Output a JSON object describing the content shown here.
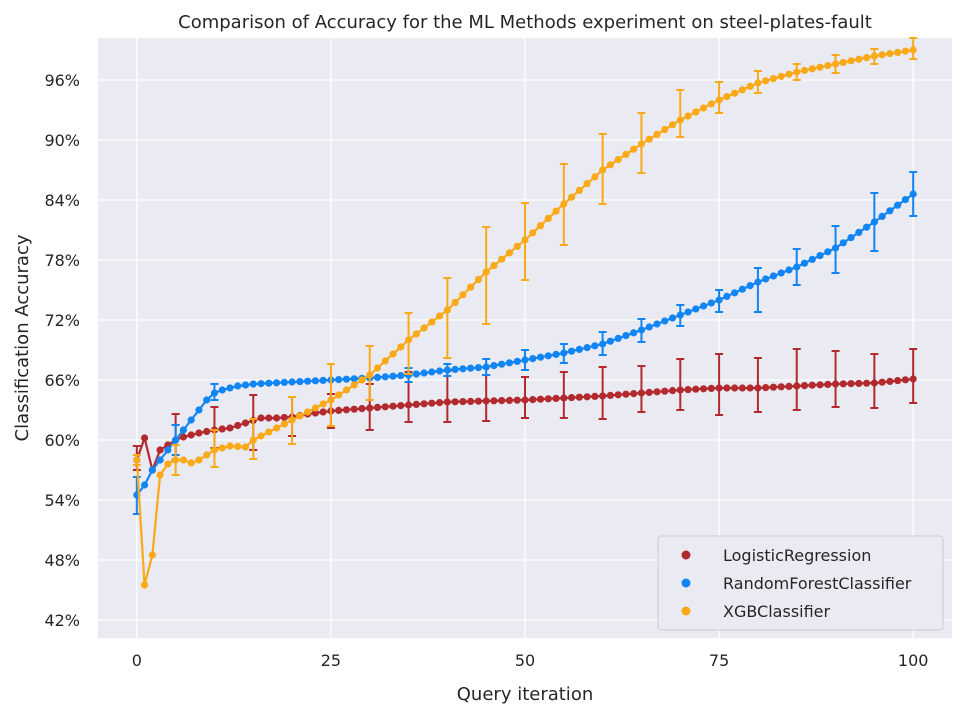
{
  "chart_data": {
    "type": "line",
    "title": "Comparison of Accuracy for the ML Methods experiment on steel-plates-fault",
    "xlabel": "Query iteration",
    "ylabel": "Classification Accuracy",
    "xlim": [
      -5,
      105
    ],
    "ylim": [
      40.2,
      100.2
    ],
    "xticks": [
      0,
      25,
      50,
      75,
      100
    ],
    "xtick_labels": [
      "0",
      "25",
      "50",
      "75",
      "100"
    ],
    "yticks": [
      42,
      48,
      54,
      60,
      66,
      72,
      78,
      84,
      90,
      96
    ],
    "ytick_labels": [
      "42%",
      "48%",
      "54%",
      "60%",
      "66%",
      "72%",
      "78%",
      "84%",
      "90%",
      "96%"
    ],
    "grid": true,
    "legend": "lower-right",
    "series": [
      {
        "name": "LogisticRegression",
        "color": "#b22a2e",
        "anchors": [
          [
            0,
            58
          ],
          [
            1,
            60.2
          ],
          [
            2,
            57
          ],
          [
            3,
            59
          ],
          [
            4,
            59.5
          ],
          [
            5,
            60
          ],
          [
            6,
            60.3
          ],
          [
            8,
            60.7
          ],
          [
            10,
            61
          ],
          [
            12,
            61.2
          ],
          [
            14,
            61.7
          ],
          [
            16,
            62.2
          ],
          [
            18,
            62.2
          ],
          [
            20,
            62.3
          ],
          [
            22,
            62.6
          ],
          [
            25,
            62.9
          ],
          [
            30,
            63.2
          ],
          [
            35,
            63.5
          ],
          [
            40,
            63.8
          ],
          [
            45,
            63.9
          ],
          [
            50,
            64
          ],
          [
            55,
            64.2
          ],
          [
            60,
            64.4
          ],
          [
            65,
            64.7
          ],
          [
            70,
            65
          ],
          [
            75,
            65.2
          ],
          [
            80,
            65.2
          ],
          [
            85,
            65.4
          ],
          [
            90,
            65.6
          ],
          [
            95,
            65.7
          ],
          [
            100,
            66.1
          ]
        ],
        "error_bars": [
          {
            "x": 0,
            "low": 57.0,
            "high": 59.4
          },
          {
            "x": 5,
            "low": 58.0,
            "high": 62.6
          },
          {
            "x": 10,
            "low": 59.2,
            "high": 63.3
          },
          {
            "x": 15,
            "low": 59.0,
            "high": 64.5
          },
          {
            "x": 20,
            "low": 60.4,
            "high": 64.3
          },
          {
            "x": 25,
            "low": 61.2,
            "high": 64.6
          },
          {
            "x": 30,
            "low": 61.0,
            "high": 65.6
          },
          {
            "x": 35,
            "low": 61.8,
            "high": 66.8
          },
          {
            "x": 40,
            "low": 61.8,
            "high": 66.9
          },
          {
            "x": 45,
            "low": 61.9,
            "high": 66.5
          },
          {
            "x": 50,
            "low": 62.2,
            "high": 66.3
          },
          {
            "x": 55,
            "low": 62.2,
            "high": 66.8
          },
          {
            "x": 60,
            "low": 62.1,
            "high": 67.3
          },
          {
            "x": 65,
            "low": 62.8,
            "high": 67.4
          },
          {
            "x": 70,
            "low": 63.0,
            "high": 68.1
          },
          {
            "x": 75,
            "low": 62.5,
            "high": 68.6
          },
          {
            "x": 80,
            "low": 62.8,
            "high": 68.2
          },
          {
            "x": 85,
            "low": 63.0,
            "high": 69.1
          },
          {
            "x": 90,
            "low": 63.3,
            "high": 68.9
          },
          {
            "x": 95,
            "low": 63.2,
            "high": 68.6
          },
          {
            "x": 100,
            "low": 63.7,
            "high": 69.1
          }
        ]
      },
      {
        "name": "RandomForestClassifier",
        "color": "#1285f4",
        "anchors": [
          [
            0,
            54.5
          ],
          [
            1,
            55.5
          ],
          [
            2,
            57
          ],
          [
            3,
            58
          ],
          [
            4,
            59
          ],
          [
            5,
            60
          ],
          [
            6,
            61
          ],
          [
            7,
            62
          ],
          [
            8,
            63
          ],
          [
            9,
            64
          ],
          [
            10,
            64.7
          ],
          [
            11,
            65
          ],
          [
            12,
            65.2
          ],
          [
            13,
            65.4
          ],
          [
            14,
            65.5
          ],
          [
            15,
            65.6
          ],
          [
            20,
            65.8
          ],
          [
            25,
            66
          ],
          [
            30,
            66.2
          ],
          [
            35,
            66.5
          ],
          [
            40,
            67
          ],
          [
            45,
            67.3
          ],
          [
            50,
            68
          ],
          [
            55,
            68.7
          ],
          [
            60,
            69.6
          ],
          [
            65,
            71
          ],
          [
            70,
            72.5
          ],
          [
            75,
            74
          ],
          [
            80,
            75.8
          ],
          [
            85,
            77.3
          ],
          [
            90,
            79.2
          ],
          [
            95,
            81.8
          ],
          [
            100,
            84.6
          ]
        ],
        "error_bars": [
          {
            "x": 0,
            "low": 52.6,
            "high": 56.3
          },
          {
            "x": 5,
            "low": 58.5,
            "high": 61.5
          },
          {
            "x": 10,
            "low": 64.0,
            "high": 65.6
          },
          {
            "x": 35,
            "low": 65.8,
            "high": 67.2
          },
          {
            "x": 40,
            "low": 66.4,
            "high": 67.6
          },
          {
            "x": 45,
            "low": 66.5,
            "high": 68.1
          },
          {
            "x": 50,
            "low": 67.0,
            "high": 69.0
          },
          {
            "x": 55,
            "low": 67.7,
            "high": 69.6
          },
          {
            "x": 60,
            "low": 68.5,
            "high": 70.8
          },
          {
            "x": 65,
            "low": 69.8,
            "high": 72.1
          },
          {
            "x": 70,
            "low": 71.4,
            "high": 73.5
          },
          {
            "x": 75,
            "low": 72.8,
            "high": 75.0
          },
          {
            "x": 80,
            "low": 72.8,
            "high": 77.2
          },
          {
            "x": 85,
            "low": 75.5,
            "high": 79.1
          },
          {
            "x": 90,
            "low": 76.7,
            "high": 81.4
          },
          {
            "x": 95,
            "low": 78.9,
            "high": 84.7
          },
          {
            "x": 100,
            "low": 82.4,
            "high": 86.8
          }
        ]
      },
      {
        "name": "XGBClassifier",
        "color": "#faa918",
        "anchors": [
          [
            0,
            58
          ],
          [
            1,
            45.5
          ],
          [
            2,
            48.5
          ],
          [
            3,
            56.5
          ],
          [
            4,
            57.6
          ],
          [
            5,
            58
          ],
          [
            6,
            58
          ],
          [
            7,
            57.7
          ],
          [
            8,
            58
          ],
          [
            9,
            58.5
          ],
          [
            10,
            59
          ],
          [
            12,
            59.4
          ],
          [
            14,
            59.3
          ],
          [
            15,
            60
          ],
          [
            20,
            62
          ],
          [
            25,
            64
          ],
          [
            30,
            66.5
          ],
          [
            35,
            70
          ],
          [
            40,
            73
          ],
          [
            45,
            76.8
          ],
          [
            50,
            80
          ],
          [
            55,
            83.6
          ],
          [
            60,
            87
          ],
          [
            65,
            89.6
          ],
          [
            70,
            92
          ],
          [
            75,
            94
          ],
          [
            80,
            95.7
          ],
          [
            85,
            96.8
          ],
          [
            90,
            97.6
          ],
          [
            95,
            98.4
          ],
          [
            100,
            99
          ]
        ],
        "error_bars": [
          {
            "x": 0,
            "low": 57.5,
            "high": 58.5
          },
          {
            "x": 5,
            "low": 56.5,
            "high": 59.5
          },
          {
            "x": 10,
            "low": 57.3,
            "high": 61.0
          },
          {
            "x": 15,
            "low": 58.1,
            "high": 62.1
          },
          {
            "x": 20,
            "low": 59.6,
            "high": 64.3
          },
          {
            "x": 25,
            "low": 61.4,
            "high": 67.6
          },
          {
            "x": 30,
            "low": 64.0,
            "high": 69.4
          },
          {
            "x": 35,
            "low": 66.6,
            "high": 72.7
          },
          {
            "x": 40,
            "low": 68.2,
            "high": 76.2
          },
          {
            "x": 45,
            "low": 71.6,
            "high": 81.3
          },
          {
            "x": 50,
            "low": 76.0,
            "high": 83.7
          },
          {
            "x": 55,
            "low": 79.5,
            "high": 87.6
          },
          {
            "x": 60,
            "low": 83.6,
            "high": 90.6
          },
          {
            "x": 65,
            "low": 86.7,
            "high": 92.7
          },
          {
            "x": 70,
            "low": 90.3,
            "high": 95.0
          },
          {
            "x": 75,
            "low": 92.7,
            "high": 95.8
          },
          {
            "x": 80,
            "low": 94.7,
            "high": 96.9
          },
          {
            "x": 85,
            "low": 96.0,
            "high": 97.6
          },
          {
            "x": 90,
            "low": 96.7,
            "high": 98.5
          },
          {
            "x": 95,
            "low": 97.6,
            "high": 99.1
          },
          {
            "x": 100,
            "low": 98.1,
            "high": 100.2
          }
        ]
      }
    ]
  }
}
